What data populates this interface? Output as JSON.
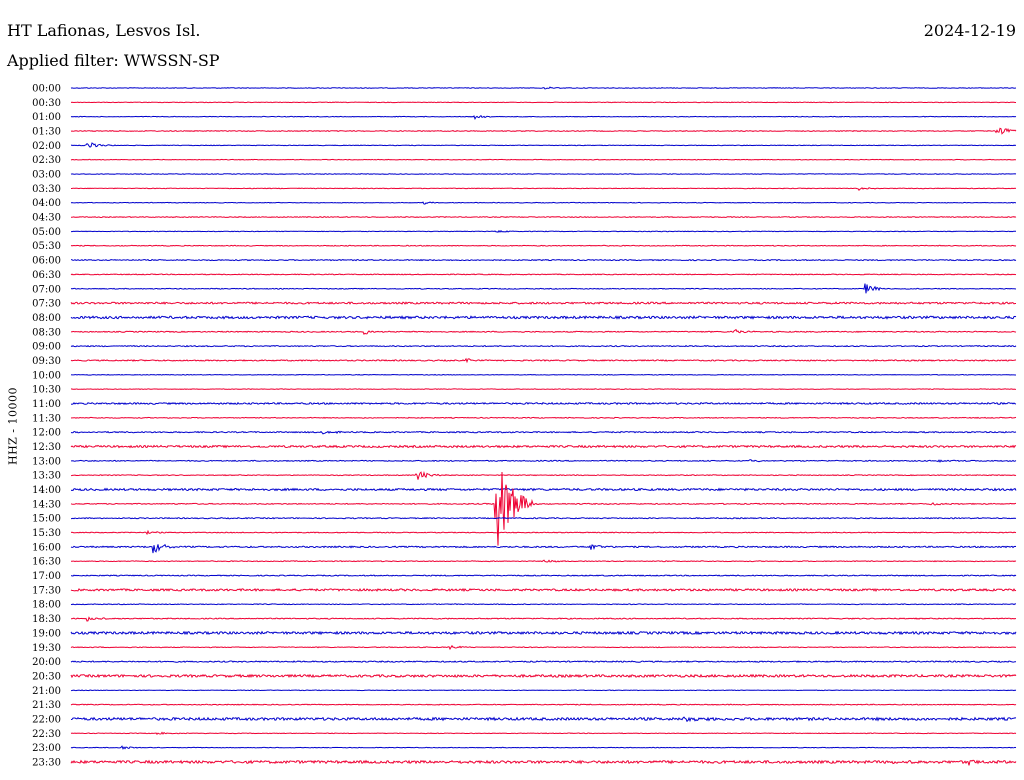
{
  "header": {
    "station": "HT Lafionas, Lesvos Isl.",
    "date": "2024-12-19",
    "filter": "Applied filter: WWSSN-SP"
  },
  "axis_label": "HHZ - 10000",
  "colors": {
    "even_line": "#0000cc",
    "odd_line": "#ee0033",
    "text": "#000000"
  },
  "chart_data": {
    "type": "line",
    "title": "",
    "ylabel": "HHZ - 10000",
    "xlabel": "",
    "time_labels": [
      "00:00",
      "00:30",
      "01:00",
      "01:30",
      "02:00",
      "02:30",
      "03:00",
      "03:30",
      "04:00",
      "04:30",
      "05:00",
      "05:30",
      "06:00",
      "06:30",
      "07:00",
      "07:30",
      "08:00",
      "08:30",
      "09:00",
      "09:30",
      "10:00",
      "10:30",
      "11:00",
      "11:30",
      "12:00",
      "12:30",
      "13:00",
      "13:30",
      "14:00",
      "14:30",
      "15:00",
      "15:30",
      "16:00",
      "16:30",
      "17:00",
      "17:30",
      "18:00",
      "18:30",
      "19:00",
      "19:30",
      "20:00",
      "20:30",
      "21:00",
      "21:30",
      "22:00",
      "22:30",
      "23:00",
      "23:30"
    ],
    "trace_duration_minutes": 30,
    "noise_level": [
      0.3,
      0.3,
      0.3,
      0.4,
      0.3,
      0.3,
      0.3,
      0.3,
      0.3,
      0.4,
      0.3,
      0.4,
      0.5,
      0.4,
      0.4,
      0.9,
      1.2,
      0.5,
      0.5,
      0.6,
      0.3,
      0.3,
      0.8,
      0.4,
      0.6,
      1.0,
      0.5,
      0.4,
      1.0,
      0.5,
      0.5,
      0.4,
      0.7,
      0.4,
      0.5,
      1.0,
      0.4,
      0.5,
      1.2,
      0.4,
      0.6,
      1.2,
      0.3,
      0.4,
      1.3,
      0.3,
      0.3,
      1.3
    ],
    "events": [
      {
        "row": 0,
        "minute": 15.0,
        "amplitude": 1.5
      },
      {
        "row": 2,
        "minute": 12.8,
        "amplitude": 2
      },
      {
        "row": 3,
        "minute": 29.4,
        "amplitude": 6
      },
      {
        "row": 4,
        "minute": 0.5,
        "amplitude": 4
      },
      {
        "row": 7,
        "minute": 25.0,
        "amplitude": 2
      },
      {
        "row": 8,
        "minute": 11.2,
        "amplitude": 1.5
      },
      {
        "row": 10,
        "minute": 13.5,
        "amplitude": 2
      },
      {
        "row": 14,
        "minute": 25.2,
        "amplitude": 6
      },
      {
        "row": 17,
        "minute": 9.3,
        "amplitude": 3
      },
      {
        "row": 17,
        "minute": 21.0,
        "amplitude": 3
      },
      {
        "row": 19,
        "minute": 12.5,
        "amplitude": 2
      },
      {
        "row": 24,
        "minute": 8.0,
        "amplitude": 2
      },
      {
        "row": 26,
        "minute": 21.5,
        "amplitude": 2
      },
      {
        "row": 26,
        "minute": 27.5,
        "amplitude": 2
      },
      {
        "row": 27,
        "minute": 11.0,
        "amplitude": 6
      },
      {
        "row": 29,
        "minute": 13.5,
        "amplitude": 52
      },
      {
        "row": 29,
        "minute": 27.3,
        "amplitude": 2
      },
      {
        "row": 31,
        "minute": 2.4,
        "amplitude": 2
      },
      {
        "row": 32,
        "minute": 2.6,
        "amplitude": 7
      },
      {
        "row": 32,
        "minute": 16.5,
        "amplitude": 4
      },
      {
        "row": 33,
        "minute": 15.0,
        "amplitude": 2
      },
      {
        "row": 37,
        "minute": 0.5,
        "amplitude": 3
      },
      {
        "row": 39,
        "minute": 12.0,
        "amplitude": 2
      },
      {
        "row": 44,
        "minute": 19.5,
        "amplitude": 3
      },
      {
        "row": 45,
        "minute": 2.6,
        "amplitude": 2
      },
      {
        "row": 46,
        "minute": 1.6,
        "amplitude": 2
      },
      {
        "row": 47,
        "minute": 26.0,
        "amplitude": 3
      },
      {
        "row": 47,
        "minute": 28.5,
        "amplitude": 3
      }
    ]
  }
}
